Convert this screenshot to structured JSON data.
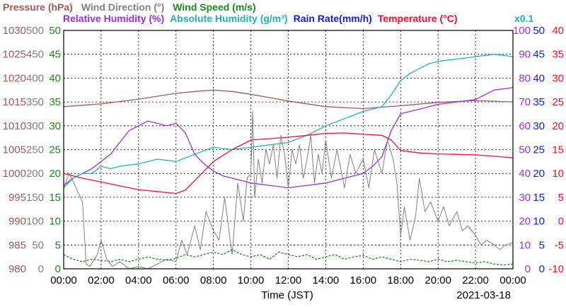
{
  "chart_data": {
    "type": "line",
    "date_label": "2021-03-18",
    "xlabel": "Time (JST)",
    "x_ticks": [
      "00:00",
      "02:00",
      "04:00",
      "06:00",
      "08:00",
      "10:00",
      "12:00",
      "14:00",
      "16:00",
      "18:00",
      "20:00",
      "22:00",
      "00:00"
    ],
    "x_range_hours": [
      0,
      24
    ],
    "grid": true,
    "axes": {
      "pressure": {
        "label": "Pressure (hPa)",
        "color": "#a05a5a",
        "ticks": [
          "980",
          "985",
          "990",
          "995",
          "1000",
          "1005",
          "1010",
          "1015",
          "1020",
          "1025",
          "1030"
        ],
        "range": [
          980,
          1030
        ]
      },
      "wind_dir": {
        "label": "Wind Direction (°)",
        "color": "#808080",
        "ticks": [
          "0",
          "50",
          "100",
          "150",
          "200",
          "250",
          "300",
          "350",
          "400",
          "450",
          "500"
        ],
        "range": [
          0,
          500
        ]
      },
      "wind_speed": {
        "label": "Wind Speed (m/s)",
        "color": "#1a8a1a",
        "ticks": [
          "0",
          "5",
          "10",
          "15",
          "20",
          "25",
          "30",
          "35",
          "40",
          "45",
          "50"
        ],
        "range": [
          0,
          50
        ]
      },
      "humidity": {
        "label": "Relative Humidity (%)",
        "color": "#9b30e0",
        "ticks": [
          "0",
          "10",
          "20",
          "30",
          "40",
          "50",
          "60",
          "70",
          "80",
          "90",
          "100"
        ],
        "range": [
          0,
          100
        ]
      },
      "abs_humidity": {
        "label": "Absolute Humidity (g/m³)",
        "scale_label": "x0.1",
        "color": "#20b2b2",
        "range": [
          0,
          100
        ]
      },
      "rain": {
        "label": "Rain Rate(mm/h)",
        "color": "#1020d0",
        "ticks": [
          "0",
          "5",
          "10",
          "15",
          "20",
          "25",
          "30",
          "35",
          "40",
          "45",
          "50"
        ],
        "range": [
          0,
          50
        ]
      },
      "temperature": {
        "label": "Temperature (°C)",
        "color": "#ee1133",
        "ticks": [
          "-10",
          "-5",
          "0",
          "5",
          "10",
          "15",
          "20",
          "25",
          "30",
          "35",
          "40"
        ],
        "range": [
          -10,
          40
        ]
      }
    },
    "legend_row1": [
      {
        "text": "Pressure (hPa)",
        "color": "#a05a5a"
      },
      {
        "text": "Wind Direction (°)",
        "color": "#808080"
      },
      {
        "text": "Wind Speed (m/s)",
        "color": "#1a8a1a"
      }
    ],
    "legend_row2": [
      {
        "text": "Relative Humidity (%)",
        "color": "#9b30e0"
      },
      {
        "text": "Absolute Humidity (g/m³)",
        "color": "#20b2b2"
      },
      {
        "text": "Rain Rate(mm/h)",
        "color": "#1020d0"
      },
      {
        "text": "Temperature (°C)",
        "color": "#ee1133"
      }
    ],
    "series": [
      {
        "name": "Pressure (hPa)",
        "axis": "pressure",
        "color": "#a05a5a",
        "x": [
          0,
          2,
          4,
          6,
          7,
          8,
          9,
          10,
          11,
          12,
          13,
          14,
          16,
          18,
          20,
          22,
          24
        ],
        "y": [
          1014.0,
          1014.6,
          1015.6,
          1016.8,
          1017.2,
          1017.5,
          1017.2,
          1016.6,
          1015.9,
          1015.2,
          1014.6,
          1014.0,
          1013.6,
          1014.2,
          1014.9,
          1015.3,
          1015.0
        ]
      },
      {
        "name": "Relative Humidity (%)",
        "axis": "humidity",
        "color": "#9b30e0",
        "x": [
          0,
          0.5,
          1.5,
          2.5,
          3.5,
          4.5,
          5.5,
          6.0,
          6.5,
          7.0,
          7.5,
          8.0,
          8.5,
          9.0,
          9.5,
          10.0,
          11,
          12,
          13,
          14,
          15,
          16,
          16.5,
          17,
          17.5,
          18,
          19,
          20,
          21,
          22,
          23,
          24
        ],
        "y": [
          35,
          38,
          42,
          48,
          58,
          62,
          60,
          61,
          57,
          48,
          44,
          41,
          39,
          38,
          37,
          36,
          35,
          34,
          35,
          36,
          38,
          40,
          43,
          47,
          58,
          65,
          67,
          69,
          70,
          71,
          75,
          76
        ]
      },
      {
        "name": "Absolute Humidity (g/m³)",
        "axis": "abs_humidity",
        "color": "#20b2b2",
        "x": [
          0,
          0.5,
          1,
          1.5,
          2,
          2.5,
          3,
          4,
          5,
          6,
          7,
          8,
          9,
          10,
          11,
          12,
          13,
          14,
          15,
          16,
          17,
          17.5,
          18,
          18.5,
          19,
          19.5,
          20,
          21,
          22,
          23,
          24
        ],
        "y": [
          34,
          38,
          40,
          40,
          43,
          42,
          43,
          44,
          46,
          45,
          48,
          51,
          50,
          51,
          52,
          53,
          56,
          60,
          63,
          66,
          68,
          73,
          79,
          82,
          84,
          86,
          87,
          88,
          89,
          90,
          89
        ]
      },
      {
        "name": "Temperature (°C)",
        "axis": "temperature",
        "color": "#ee1133",
        "x": [
          0,
          1,
          2,
          3,
          4,
          5,
          6,
          6.5,
          7,
          8,
          9,
          10,
          11,
          12,
          13,
          14,
          15,
          16,
          17,
          17.5,
          18,
          19,
          20,
          21,
          22,
          23,
          24
        ],
        "y": [
          10,
          9,
          8.2,
          7.4,
          6.6,
          6.2,
          5.8,
          6.5,
          8.5,
          12.5,
          15,
          17,
          17.3,
          17.6,
          18.0,
          18.4,
          18.5,
          18.2,
          18.0,
          17.0,
          14.8,
          14.3,
          14.1,
          14.0,
          13.9,
          13.6,
          13.3
        ]
      },
      {
        "name": "Wind Direction (°)",
        "axis": "wind_dir",
        "color": "#808080",
        "x": [
          0,
          0.3,
          0.6,
          1.0,
          1.2,
          1.4,
          1.8,
          2.0,
          2.3,
          2.6,
          3.0,
          3.5,
          4.0,
          4.5,
          5.0,
          5.5,
          6.0,
          6.3,
          6.6,
          7.0,
          7.3,
          7.6,
          8.0,
          8.3,
          8.6,
          9.0,
          9.3,
          9.6,
          9.8,
          10.0,
          10.1,
          10.2,
          10.4,
          10.6,
          10.8,
          11.0,
          11.2,
          11.4,
          11.6,
          11.8,
          12.0,
          12.2,
          12.4,
          12.6,
          12.8,
          13.0,
          13.2,
          13.4,
          13.6,
          13.8,
          14.0,
          14.3,
          14.6,
          15.0,
          15.3,
          15.6,
          16.0,
          16.3,
          16.6,
          17.0,
          17.3,
          17.6,
          17.8,
          18.0,
          18.2,
          18.5,
          18.8,
          19.0,
          19.3,
          19.6,
          20.0,
          20.3,
          20.6,
          21.0,
          21.3,
          21.6,
          22.0,
          22.3,
          22.6,
          23.0,
          23.3,
          23.6,
          24.0
        ],
        "y": [
          170,
          200,
          175,
          140,
          10,
          5,
          30,
          60,
          20,
          5,
          15,
          0,
          5,
          0,
          10,
          20,
          15,
          60,
          30,
          90,
          40,
          120,
          80,
          60,
          150,
          30,
          180,
          100,
          190,
          200,
          330,
          150,
          230,
          180,
          250,
          220,
          260,
          190,
          280,
          240,
          170,
          250,
          220,
          260,
          190,
          230,
          280,
          180,
          240,
          200,
          270,
          190,
          250,
          170,
          240,
          200,
          230,
          170,
          250,
          200,
          270,
          230,
          180,
          70,
          130,
          60,
          110,
          190,
          120,
          140,
          100,
          130,
          90,
          120,
          80,
          90,
          70,
          50,
          60,
          50,
          40,
          50,
          55
        ]
      },
      {
        "name": "Wind Speed (m/s)",
        "axis": "wind_speed",
        "color": "#1a8a1a",
        "x": [
          0,
          0.5,
          1,
          1.5,
          2,
          2.5,
          3,
          3.5,
          4,
          4.5,
          5,
          5.5,
          6,
          6.5,
          7,
          7.5,
          8,
          8.5,
          9,
          9.5,
          10,
          10.5,
          11,
          11.5,
          12,
          12.5,
          13,
          13.5,
          14,
          14.5,
          15,
          15.5,
          16,
          16.5,
          17,
          17.5,
          18,
          18.5,
          19,
          19.5,
          20,
          20.5,
          21,
          21.5,
          22,
          22.5,
          23,
          23.5,
          24
        ],
        "y": [
          3,
          2,
          1.5,
          2,
          1.8,
          1.5,
          2,
          1.5,
          2,
          2.5,
          2,
          1.8,
          2.2,
          3,
          2.5,
          3,
          3.5,
          3,
          4,
          3,
          2.5,
          3,
          2,
          3.5,
          3,
          2.5,
          3,
          2,
          2.5,
          3,
          2,
          2.5,
          2.8,
          2,
          2.5,
          2,
          1.5,
          2,
          1.8,
          1.5,
          2,
          1.5,
          1.8,
          1.5,
          1.2,
          1.5,
          1.0,
          0.8,
          1.0
        ]
      }
    ]
  }
}
